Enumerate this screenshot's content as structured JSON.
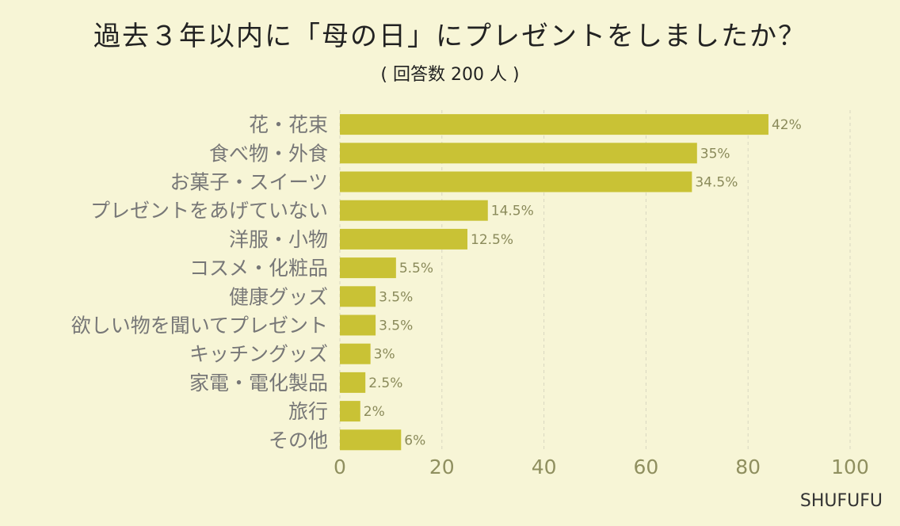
{
  "title": "過去３年以内に「母の日」にプレゼントをしましたか？",
  "subtitle": "( 回答数 200 人 )",
  "brand": "SHUFUFU",
  "colors": {
    "bar": "#c9c235",
    "background": "#f7f5d6",
    "grid": "#d8d6c0"
  },
  "chart_data": {
    "type": "bar",
    "orientation": "horizontal",
    "title": "過去３年以内に「母の日」にプレゼントをしましたか？",
    "subtitle": "( 回答数 200 人 )",
    "categories": [
      "花・花束",
      "食べ物・外食",
      "お菓子・スイーツ",
      "プレゼントをあげていない",
      "洋服・小物",
      "コスメ・化粧品",
      "健康グッズ",
      "欲しい物を聞いてプレゼント",
      "キッチングッズ",
      "家電・電化製品",
      "旅行",
      "その他"
    ],
    "values": [
      84,
      70,
      69,
      29,
      25,
      11,
      7,
      7,
      6,
      5,
      4,
      12
    ],
    "value_labels": [
      "42%",
      "35%",
      "34.5%",
      "14.5%",
      "12.5%",
      "5.5%",
      "3.5%",
      "3.5%",
      "3%",
      "2.5%",
      "2%",
      "6%"
    ],
    "xlim": [
      0,
      100
    ],
    "xticks": [
      0,
      20,
      40,
      60,
      80,
      100
    ],
    "xlabel": "",
    "ylabel": "",
    "grid": true
  }
}
